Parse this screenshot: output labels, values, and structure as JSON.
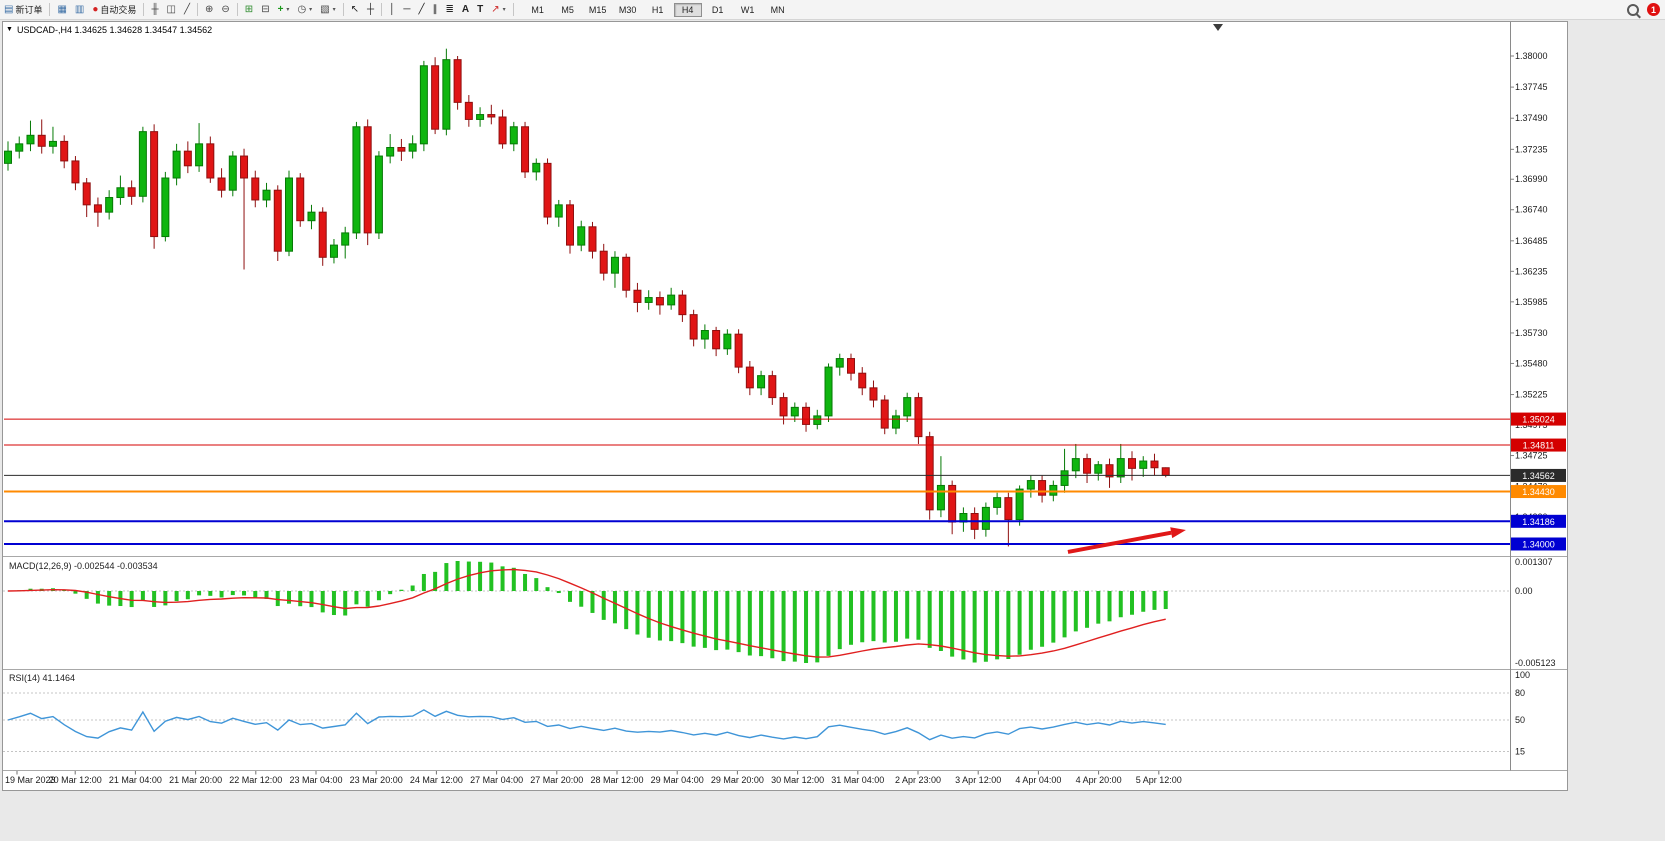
{
  "toolbar": {
    "notification_count": "1",
    "timeframes": [
      "M1",
      "M5",
      "M15",
      "M30",
      "H1",
      "H4",
      "D1",
      "W1",
      "MN"
    ],
    "active_timeframe": "H4",
    "items": [
      {
        "name": "new-order-button",
        "icon": "order-form-icon",
        "label": "新订单"
      },
      {
        "sep": true
      },
      {
        "name": "charts-window-button",
        "icon": "chart-window-icon"
      },
      {
        "name": "profiles-button",
        "icon": "profiles-icon"
      },
      {
        "name": "autotrading-button",
        "icon": "autotrading-icon",
        "label": "自动交易"
      },
      {
        "sep": true
      },
      {
        "name": "bar-chart-button",
        "icon": "ohlc-bars-icon"
      },
      {
        "name": "candlestick-chart-button",
        "icon": "candlestick-icon"
      },
      {
        "name": "line-chart-button",
        "icon": "line-chart-icon"
      },
      {
        "sep": true
      },
      {
        "name": "zoom-in-button",
        "icon": "zoom-in-icon"
      },
      {
        "name": "zoom-out-button",
        "icon": "zoom-out-icon"
      },
      {
        "sep": true
      },
      {
        "name": "tile-windows-button",
        "icon": "tile-windows-icon"
      },
      {
        "name": "auto-arrange-button",
        "icon": "arrange-icon"
      },
      {
        "name": "indicators-button",
        "icon": "add-indicator-icon",
        "caret": true
      },
      {
        "name": "periods-button",
        "icon": "clock-icon",
        "caret": true
      },
      {
        "name": "templates-button",
        "icon": "template-icon",
        "caret": true
      },
      {
        "sep": true
      },
      {
        "name": "cursor-button",
        "icon": "cursor-icon"
      },
      {
        "name": "crosshair-button",
        "icon": "crosshair-icon"
      },
      {
        "sep": true
      },
      {
        "name": "vertical-line-button",
        "icon": "vertical-line-icon"
      },
      {
        "name": "horizontal-line-button",
        "icon": "horizontal-line-icon"
      },
      {
        "name": "trendline-button",
        "icon": "trendline-icon"
      },
      {
        "name": "equidistant-channel-button",
        "icon": "channel-icon"
      },
      {
        "name": "fibonacci-button",
        "icon": "fibonacci-icon"
      },
      {
        "name": "text-button",
        "icon": "text-icon"
      },
      {
        "name": "text-label-button",
        "icon": "label-icon"
      },
      {
        "name": "arrow-shapes-button",
        "icon": "arrow-shapes-icon",
        "caret": true
      },
      {
        "sep": true
      }
    ]
  },
  "chart_data": {
    "type": "candlestick",
    "symbol": "USDCAD-",
    "period": "H4",
    "title_text": "USDCAD-,H4 1.34625 1.34628 1.34547 1.34562",
    "open": "1.34625",
    "high": "1.34628",
    "low": "1.34547",
    "close": "1.34562",
    "current_price": "1.34562",
    "bull_color": "#0fb50f",
    "bear_color": "#e01515",
    "ylim": [
      1.3391,
      1.3814
    ],
    "y_axis_labels": [
      "1.38000",
      "1.37745",
      "1.37490",
      "1.37235",
      "1.36990",
      "1.36740",
      "1.36485",
      "1.36235",
      "1.35985",
      "1.35730",
      "1.35480",
      "1.35225",
      "1.34975",
      "1.34725",
      "1.34470",
      "1.34220"
    ],
    "x_labels": [
      "19 Mar 2023",
      "20 Mar 12:00",
      "21 Mar 04:00",
      "21 Mar 20:00",
      "22 Mar 12:00",
      "23 Mar 04:00",
      "23 Mar 20:00",
      "24 Mar 12:00",
      "27 Mar 04:00",
      "27 Mar 20:00",
      "28 Mar 12:00",
      "29 Mar 04:00",
      "29 Mar 20:00",
      "30 Mar 12:00",
      "31 Mar 04:00",
      "2 Apr 23:00",
      "3 Apr 12:00",
      "4 Apr 04:00",
      "4 Apr 20:00",
      "5 Apr 12:00"
    ],
    "levels": [
      {
        "name": "resistance-line-1",
        "price": 1.35024,
        "label": "1.35024",
        "color": "#d40000",
        "width": 1
      },
      {
        "name": "resistance-line-2",
        "price": 1.34811,
        "label": "1.34811",
        "color": "#d40000",
        "width": 1
      },
      {
        "name": "current-price-line",
        "price": 1.34562,
        "label": "1.34562",
        "color": "#2b2b2b",
        "width": 1,
        "current": true
      },
      {
        "name": "pivot-line",
        "price": 1.3443,
        "label": "1.34430",
        "color": "#ff8a00",
        "width": 2
      },
      {
        "name": "support-line-1",
        "price": 1.34186,
        "label": "1.34186",
        "color": "#0000d2",
        "width": 2
      },
      {
        "name": "support-line-2",
        "price": 1.34,
        "label": "1.34000",
        "color": "#0000d2",
        "width": 2
      }
    ],
    "arrow": {
      "name": "trend-arrow",
      "color": "#e01818",
      "width": 4,
      "from": {
        "index": 94.3,
        "price": 1.33935
      },
      "to": {
        "index": 104.8,
        "price": 1.34115
      }
    },
    "indicators": {
      "macd": {
        "label": "MACD(12,26,9) -0.002544 -0.003534",
        "fast": 12,
        "slow": 26,
        "signal": 9,
        "axis_labels": [
          "0.001307",
          "0.00",
          "-0.005123"
        ],
        "histogram_color": "#22c122",
        "signal_color": "#e02020"
      },
      "rsi": {
        "label": "RSI(14) 41.1464",
        "period": 14,
        "axis_labels": [
          "100",
          "80",
          "50",
          "15"
        ],
        "levels": [
          80,
          50,
          15
        ],
        "line_color": "#3f95d8"
      }
    },
    "candles": [
      [
        1.3712,
        1.373,
        1.3706,
        1.3722
      ],
      [
        1.3722,
        1.3734,
        1.3716,
        1.3728
      ],
      [
        1.3728,
        1.3747,
        1.3722,
        1.3735
      ],
      [
        1.3735,
        1.3748,
        1.372,
        1.3726
      ],
      [
        1.3726,
        1.3742,
        1.372,
        1.373
      ],
      [
        1.373,
        1.3735,
        1.3708,
        1.3714
      ],
      [
        1.3714,
        1.3718,
        1.369,
        1.3696
      ],
      [
        1.3696,
        1.37,
        1.3668,
        1.3678
      ],
      [
        1.3678,
        1.3684,
        1.366,
        1.3672
      ],
      [
        1.3672,
        1.369,
        1.3666,
        1.3684
      ],
      [
        1.3684,
        1.3702,
        1.3678,
        1.3692
      ],
      [
        1.3692,
        1.3698,
        1.3678,
        1.3685
      ],
      [
        1.3685,
        1.3742,
        1.368,
        1.3738
      ],
      [
        1.3738,
        1.3744,
        1.3642,
        1.3652
      ],
      [
        1.3652,
        1.3705,
        1.3648,
        1.37
      ],
      [
        1.37,
        1.3728,
        1.3694,
        1.3722
      ],
      [
        1.3722,
        1.373,
        1.3704,
        1.371
      ],
      [
        1.371,
        1.3745,
        1.3705,
        1.3728
      ],
      [
        1.3728,
        1.3734,
        1.3696,
        1.37
      ],
      [
        1.37,
        1.3708,
        1.3684,
        1.369
      ],
      [
        1.369,
        1.3722,
        1.3685,
        1.3718
      ],
      [
        1.3718,
        1.3724,
        1.3625,
        1.37
      ],
      [
        1.37,
        1.3706,
        1.3676,
        1.3682
      ],
      [
        1.3682,
        1.3696,
        1.3676,
        1.369
      ],
      [
        1.369,
        1.3694,
        1.3632,
        1.364
      ],
      [
        1.364,
        1.3706,
        1.3636,
        1.37
      ],
      [
        1.37,
        1.3704,
        1.366,
        1.3665
      ],
      [
        1.3665,
        1.3678,
        1.3658,
        1.3672
      ],
      [
        1.3672,
        1.3676,
        1.3628,
        1.3635
      ],
      [
        1.3635,
        1.365,
        1.363,
        1.3645
      ],
      [
        1.3645,
        1.366,
        1.3634,
        1.3655
      ],
      [
        1.3655,
        1.3746,
        1.365,
        1.3742
      ],
      [
        1.3742,
        1.3748,
        1.3645,
        1.3655
      ],
      [
        1.3655,
        1.3722,
        1.365,
        1.3718
      ],
      [
        1.3718,
        1.3736,
        1.3712,
        1.3725
      ],
      [
        1.3725,
        1.3732,
        1.3714,
        1.3722
      ],
      [
        1.3722,
        1.3735,
        1.3716,
        1.3728
      ],
      [
        1.3728,
        1.3796,
        1.3722,
        1.3792
      ],
      [
        1.3792,
        1.3799,
        1.3736,
        1.374
      ],
      [
        1.374,
        1.3806,
        1.3735,
        1.3797
      ],
      [
        1.3797,
        1.38,
        1.3756,
        1.3762
      ],
      [
        1.3762,
        1.3768,
        1.3742,
        1.3748
      ],
      [
        1.3748,
        1.3758,
        1.3742,
        1.3752
      ],
      [
        1.3752,
        1.376,
        1.3744,
        1.375
      ],
      [
        1.375,
        1.3756,
        1.3724,
        1.3728
      ],
      [
        1.3728,
        1.3746,
        1.3722,
        1.3742
      ],
      [
        1.3742,
        1.3746,
        1.37,
        1.3705
      ],
      [
        1.3705,
        1.3716,
        1.3698,
        1.3712
      ],
      [
        1.3712,
        1.3716,
        1.3662,
        1.3668
      ],
      [
        1.3668,
        1.3682,
        1.366,
        1.3678
      ],
      [
        1.3678,
        1.3682,
        1.3638,
        1.3645
      ],
      [
        1.3645,
        1.3665,
        1.364,
        1.366
      ],
      [
        1.366,
        1.3664,
        1.3634,
        1.364
      ],
      [
        1.364,
        1.3646,
        1.3616,
        1.3622
      ],
      [
        1.3622,
        1.364,
        1.361,
        1.3635
      ],
      [
        1.3635,
        1.3638,
        1.3602,
        1.3608
      ],
      [
        1.3608,
        1.3614,
        1.359,
        1.3598
      ],
      [
        1.3598,
        1.3608,
        1.3592,
        1.3602
      ],
      [
        1.3602,
        1.3607,
        1.3588,
        1.3596
      ],
      [
        1.3596,
        1.361,
        1.3592,
        1.3604
      ],
      [
        1.3604,
        1.3608,
        1.3582,
        1.3588
      ],
      [
        1.3588,
        1.3592,
        1.3562,
        1.3568
      ],
      [
        1.3568,
        1.358,
        1.356,
        1.3575
      ],
      [
        1.3575,
        1.3578,
        1.3554,
        1.356
      ],
      [
        1.356,
        1.3576,
        1.3555,
        1.3572
      ],
      [
        1.3572,
        1.3576,
        1.354,
        1.3545
      ],
      [
        1.3545,
        1.355,
        1.3522,
        1.3528
      ],
      [
        1.3528,
        1.3542,
        1.3522,
        1.3538
      ],
      [
        1.3538,
        1.3542,
        1.3514,
        1.352
      ],
      [
        1.352,
        1.3524,
        1.3498,
        1.3505
      ],
      [
        1.3505,
        1.3516,
        1.35,
        1.3512
      ],
      [
        1.3512,
        1.3516,
        1.3492,
        1.3498
      ],
      [
        1.3498,
        1.351,
        1.3494,
        1.3505
      ],
      [
        1.3505,
        1.3548,
        1.35,
        1.3545
      ],
      [
        1.3545,
        1.3556,
        1.3538,
        1.3552
      ],
      [
        1.3552,
        1.3556,
        1.3534,
        1.354
      ],
      [
        1.354,
        1.3545,
        1.3522,
        1.3528
      ],
      [
        1.3528,
        1.3534,
        1.3512,
        1.3518
      ],
      [
        1.3518,
        1.3522,
        1.349,
        1.3495
      ],
      [
        1.3495,
        1.351,
        1.349,
        1.3505
      ],
      [
        1.3505,
        1.3524,
        1.35,
        1.352
      ],
      [
        1.352,
        1.3524,
        1.3482,
        1.3488
      ],
      [
        1.3488,
        1.3492,
        1.342,
        1.3428
      ],
      [
        1.3428,
        1.3472,
        1.3422,
        1.3448
      ],
      [
        1.3448,
        1.3452,
        1.3408,
        1.3418
      ],
      [
        1.3418,
        1.343,
        1.341,
        1.3425
      ],
      [
        1.3425,
        1.343,
        1.3404,
        1.3412
      ],
      [
        1.3412,
        1.3434,
        1.3406,
        1.343
      ],
      [
        1.343,
        1.3442,
        1.3424,
        1.3438
      ],
      [
        1.3438,
        1.3442,
        1.3398,
        1.342
      ],
      [
        1.342,
        1.3448,
        1.3415,
        1.3445
      ],
      [
        1.3445,
        1.3456,
        1.3438,
        1.3452
      ],
      [
        1.3452,
        1.3456,
        1.3434,
        1.344
      ],
      [
        1.344,
        1.3452,
        1.3435,
        1.3448
      ],
      [
        1.3448,
        1.3478,
        1.3442,
        1.346
      ],
      [
        1.346,
        1.3482,
        1.3454,
        1.347
      ],
      [
        1.347,
        1.3474,
        1.345,
        1.3458
      ],
      [
        1.3458,
        1.3468,
        1.3452,
        1.3465
      ],
      [
        1.3465,
        1.347,
        1.3446,
        1.3455
      ],
      [
        1.3455,
        1.3482,
        1.345,
        1.347
      ],
      [
        1.347,
        1.3476,
        1.3452,
        1.3462
      ],
      [
        1.3462,
        1.3472,
        1.3455,
        1.3468
      ],
      [
        1.3468,
        1.3474,
        1.3456,
        1.34625
      ],
      [
        1.34625,
        1.34628,
        1.34547,
        1.34562
      ]
    ]
  }
}
